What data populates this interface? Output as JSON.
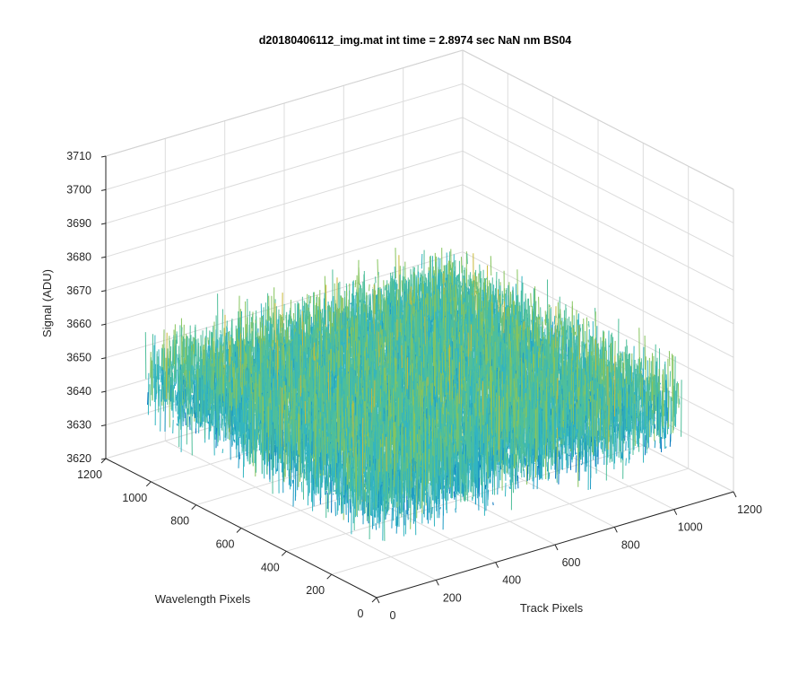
{
  "chart_data": {
    "type": "surface",
    "title": "d20180406112_img.mat int time = 2.8974 sec  NaN nm BS04",
    "xlabel": "Track Pixels",
    "ylabel": "Wavelength Pixels",
    "zlabel": "Signal (ADU)",
    "x_ticks": [
      "0",
      "200",
      "400",
      "600",
      "800",
      "1000",
      "1200"
    ],
    "y_ticks": [
      "0",
      "200",
      "400",
      "600",
      "800",
      "1000",
      "1200"
    ],
    "z_ticks": [
      "3620",
      "3630",
      "3640",
      "3650",
      "3660",
      "3670",
      "3680",
      "3690",
      "3700",
      "3710"
    ],
    "xlim": [
      0,
      1200
    ],
    "ylim": [
      0,
      1200
    ],
    "zlim": [
      3620,
      3710
    ],
    "data_extent": {
      "x": [
        0,
        1024
      ],
      "y": [
        0,
        1024
      ]
    },
    "signal_mean": 3650,
    "signal_range": [
      3625,
      3690
    ],
    "grid": true,
    "colormap": [
      "#0072BD",
      "#1E9BC4",
      "#33B5C0",
      "#4FBF9A",
      "#86C45E",
      "#C9B93A",
      "#EDB120"
    ]
  }
}
